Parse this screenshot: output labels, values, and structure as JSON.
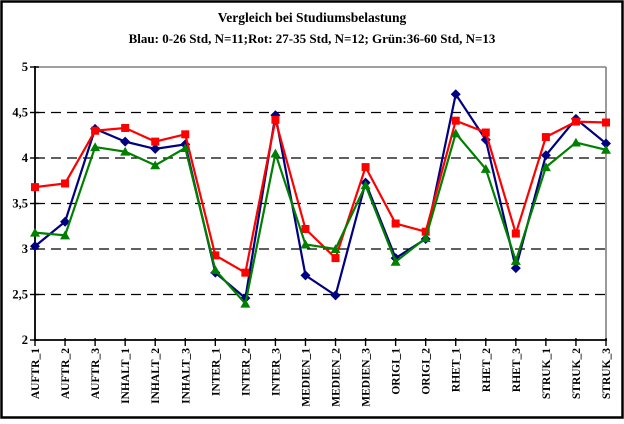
{
  "chart": {
    "title": "Vergleich bei Studiumsbelastung",
    "subtitle": "Blau: 0-26 Std, N=11;Rot: 27-35 Std, N=12; Grün:36-60 Std, N=13"
  },
  "chart_data": {
    "type": "line",
    "title": "Vergleich bei Studiumsbelastung",
    "subtitle": "Blau: 0-26 Std, N=11;Rot: 27-35 Std, N=12; Grün:36-60 Std, N=13",
    "categories": [
      "AUFTR_1",
      "AUFTR_2",
      "AUFTR_3",
      "INHALT_1",
      "INHALT_2",
      "INHALT_3",
      "INTER_1",
      "INTER_2",
      "INTER_3",
      "MEDIEN_1",
      "MEDIEN_2",
      "MEDIEN_3",
      "ORIGI_1",
      "ORIGI_2",
      "RHET_1",
      "RHET_2",
      "RHET_3",
      "STRUK_1",
      "STRUK_2",
      "STRUK_3"
    ],
    "series": [
      {
        "name": "Blau: 0-26 Std, N=11",
        "color": "#000080",
        "marker": "diamond",
        "values": [
          3.03,
          3.3,
          4.32,
          4.18,
          4.1,
          4.15,
          2.74,
          2.46,
          4.47,
          2.71,
          2.49,
          3.73,
          2.9,
          3.11,
          4.7,
          4.2,
          2.79,
          4.03,
          4.43,
          4.16
        ]
      },
      {
        "name": "Rot: 27-35 Std, N=12",
        "color": "#ff0000",
        "marker": "square",
        "values": [
          3.68,
          3.72,
          4.3,
          4.33,
          4.18,
          4.26,
          2.93,
          2.74,
          4.42,
          3.22,
          2.9,
          3.9,
          3.28,
          3.19,
          4.41,
          4.28,
          3.17,
          4.23,
          4.4,
          4.39
        ]
      },
      {
        "name": "Grün: 36-60 Std, N=13",
        "color": "#008000",
        "marker": "triangle",
        "values": [
          3.18,
          3.15,
          4.12,
          4.07,
          3.92,
          4.11,
          2.77,
          2.4,
          4.05,
          3.05,
          3.0,
          3.7,
          2.86,
          3.12,
          4.27,
          3.88,
          2.87,
          3.9,
          4.17,
          4.09
        ]
      }
    ],
    "ylim": [
      2,
      5
    ],
    "yticks": [
      {
        "label": "2",
        "value": 2
      },
      {
        "label": "2,5",
        "value": 2.5
      },
      {
        "label": "3",
        "value": 3
      },
      {
        "label": "3,5",
        "value": 3.5
      },
      {
        "label": "4",
        "value": 4
      },
      {
        "label": "4,5",
        "value": 4.5
      },
      {
        "label": "5",
        "value": 5
      }
    ],
    "grid": "horizontal-dashed",
    "legend_position": "none",
    "colors": {
      "axis": "#000000",
      "plot_top_right_border": "#808080",
      "background": "#ffffff",
      "border": "#000000"
    }
  }
}
